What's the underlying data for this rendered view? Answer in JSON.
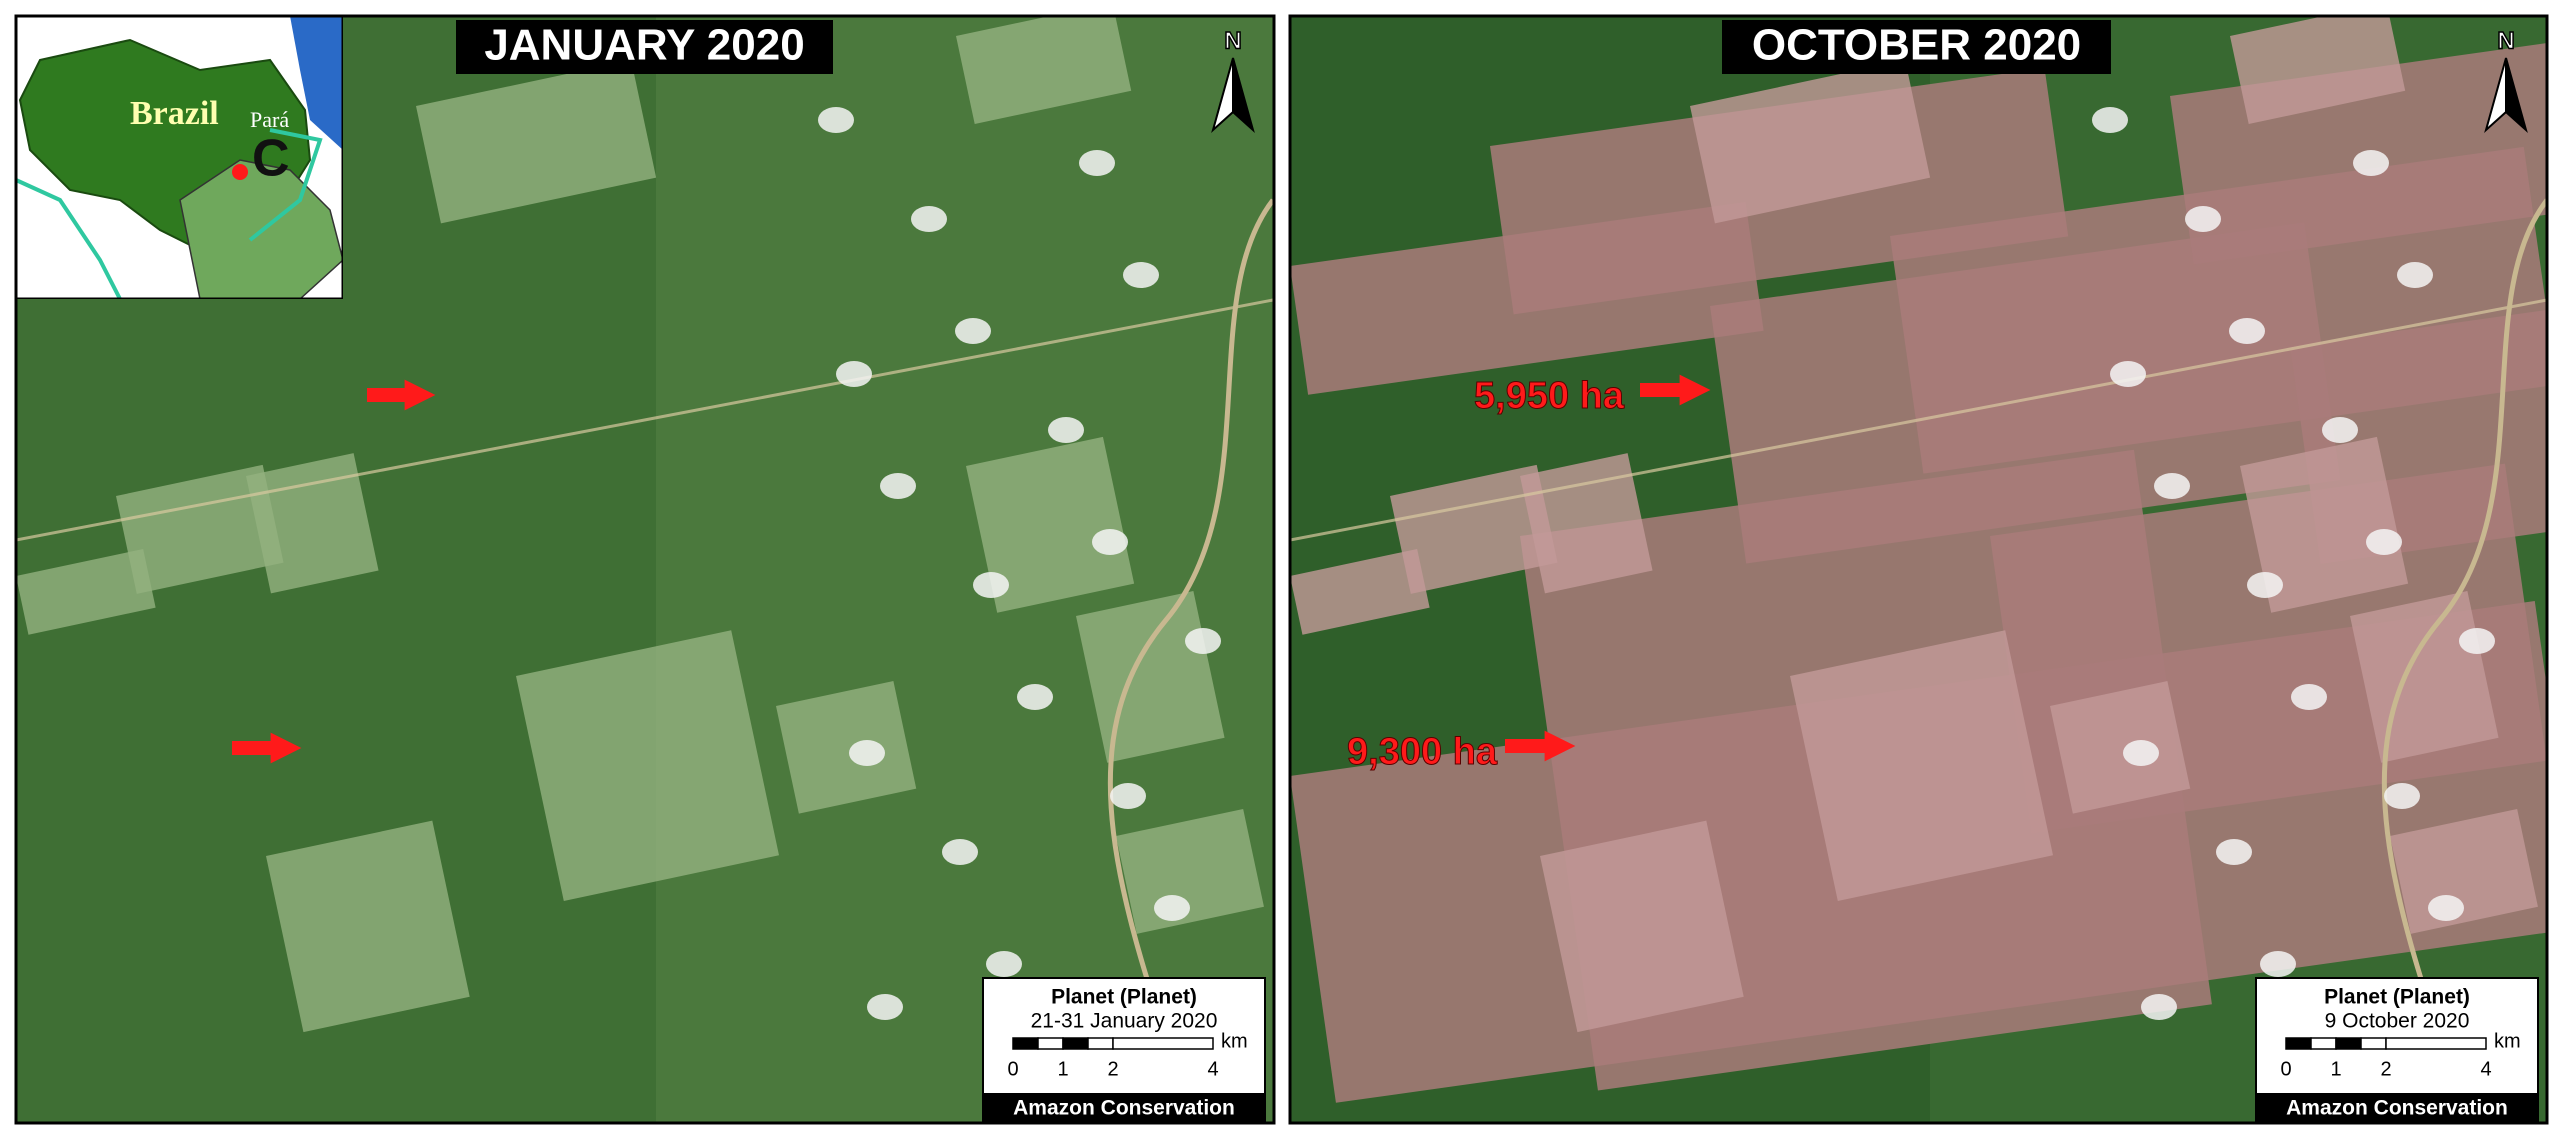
{
  "inset": {
    "country": "Brazil",
    "state": "Pará",
    "label": "C"
  },
  "panels": [
    {
      "title": "JANUARY 2020",
      "north": "N",
      "scale": {
        "source": "Planet (Planet)",
        "date": "21-31 January 2020",
        "ticks": [
          "0",
          "1",
          "2",
          "4"
        ],
        "unit": "km",
        "credit": "Amazon Conservation"
      }
    },
    {
      "title": "OCTOBER 2020",
      "north": "N",
      "annotations": [
        "5,950 ha",
        "9,300 ha"
      ],
      "scale": {
        "source": "Planet (Planet)",
        "date": "9 October 2020",
        "ticks": [
          "0",
          "1",
          "2",
          "4"
        ],
        "unit": "km",
        "credit": "Amazon Conservation"
      }
    }
  ]
}
